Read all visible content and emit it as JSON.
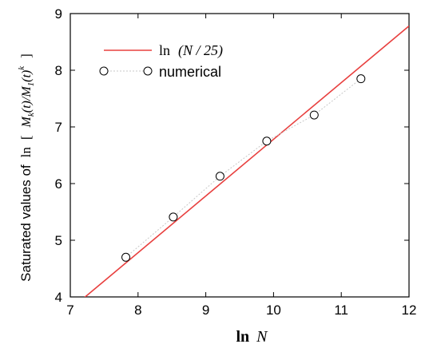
{
  "chart_data": {
    "type": "line",
    "xlim": [
      7,
      12
    ],
    "ylim": [
      4,
      9
    ],
    "xticks": [
      "7",
      "8",
      "9",
      "10",
      "11",
      "12"
    ],
    "yticks": [
      "4",
      "5",
      "6",
      "7",
      "8",
      "9"
    ],
    "xlabel": {
      "prefix": "ln",
      "variable": "N"
    },
    "ylabel": {
      "prefix": "Saturated values of",
      "ln": "ln",
      "open": "[",
      "num": "M",
      "num_sub": "k",
      "mid": "(t)/",
      "den": "M",
      "den_sub": "1",
      "den_arg": "(t)",
      "den_sup": "k",
      "close": "]"
    },
    "series": [
      {
        "name": "ln (N / 25)",
        "name_ln": "ln",
        "name_rest": "(N / 25)",
        "kind": "line",
        "color": "#e8403f",
        "x": [
          7.0,
          12.0
        ],
        "y": [
          3.781,
          8.781
        ]
      },
      {
        "name": "numerical",
        "kind": "points",
        "color": "#000000",
        "line_color": "#c8c8c8",
        "x": [
          7.82,
          8.52,
          9.21,
          9.9,
          10.6,
          11.29
        ],
        "y": [
          4.7,
          5.41,
          6.13,
          6.75,
          7.21,
          7.85
        ]
      }
    ],
    "grid": false,
    "legend": "top-left"
  }
}
